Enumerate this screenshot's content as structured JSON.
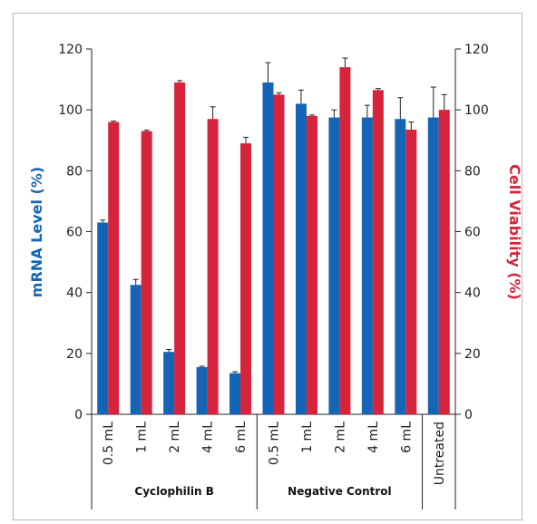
{
  "chart_data": {
    "type": "bar",
    "categories": [
      "0.5 mL",
      "1 mL",
      "2 mL",
      "4 mL",
      "6 mL",
      "0.5 mL",
      "1 mL",
      "2 mL",
      "4 mL",
      "6 mL",
      "Untreated"
    ],
    "groups": [
      {
        "label": "Cyclophilin  B",
        "start": 0,
        "end": 4
      },
      {
        "label": "Negative Control",
        "start": 5,
        "end": 9
      },
      {
        "label": "",
        "start": 10,
        "end": 10
      }
    ],
    "series": [
      {
        "axis": "left",
        "color": "#1565b7",
        "values": [
          63,
          42.5,
          20.5,
          15.5,
          13.5,
          109,
          102,
          97.5,
          97.5,
          97,
          97.5
        ],
        "errors": [
          0.8,
          1.8,
          0.8,
          0.3,
          0.5,
          6.5,
          4.5,
          2.5,
          4,
          7,
          10
        ]
      },
      {
        "axis": "right",
        "color": "#d5243b",
        "values": [
          96,
          93,
          109,
          97,
          89,
          105,
          98,
          114,
          106.5,
          93.5,
          100
        ],
        "errors": [
          0.3,
          0.3,
          0.6,
          4,
          2,
          0.6,
          0.3,
          3,
          0.5,
          2.5,
          5
        ]
      }
    ],
    "ylabel": "mRNA Level (%)",
    "y2label": "Cell Viability (%)",
    "ylim": [
      0,
      120
    ],
    "y2lim": [
      0,
      120
    ],
    "yticks": [
      0,
      20,
      40,
      60,
      80,
      100,
      120
    ],
    "grid": false
  }
}
